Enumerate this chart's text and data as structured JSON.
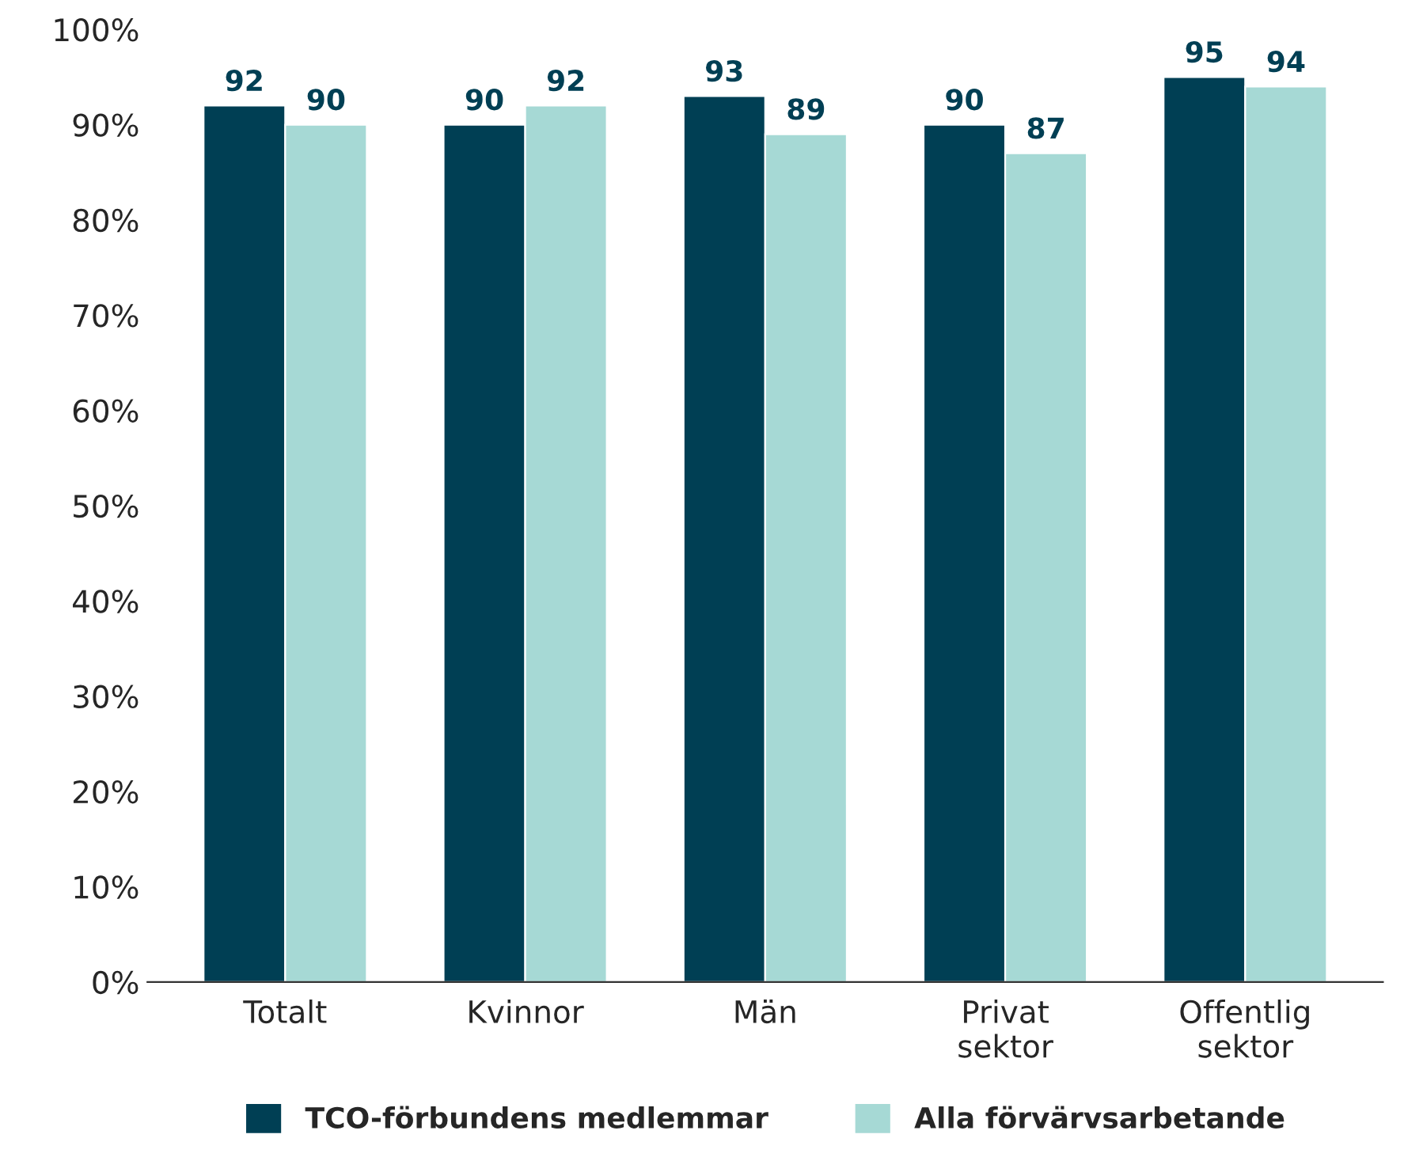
{
  "chart_data": {
    "type": "bar",
    "categories": [
      "Totalt",
      "Kvinnor",
      "Män",
      "Privat\nsektor",
      "Offentlig\nsektor"
    ],
    "series": [
      {
        "name": "TCO-förbundens medlemmar",
        "color": "#003f54",
        "values": [
          92,
          90,
          93,
          90,
          95
        ]
      },
      {
        "name": "Alla förvärvsarbetande",
        "color": "#a6d9d5",
        "values": [
          90,
          92,
          89,
          87,
          94
        ]
      }
    ],
    "ylim": [
      0,
      100
    ],
    "yticks": [
      {
        "value": 0,
        "label": "0%"
      },
      {
        "value": 10,
        "label": "10%"
      },
      {
        "value": 20,
        "label": "20%"
      },
      {
        "value": 30,
        "label": "30%"
      },
      {
        "value": 40,
        "label": "40%"
      },
      {
        "value": 50,
        "label": "50%"
      },
      {
        "value": 60,
        "label": "60%"
      },
      {
        "value": 70,
        "label": "70%"
      },
      {
        "value": 80,
        "label": "80%"
      },
      {
        "value": 90,
        "label": "90%"
      },
      {
        "value": 100,
        "label": "100%"
      }
    ],
    "data_labels": true,
    "legend": "bottom",
    "grid": false
  }
}
